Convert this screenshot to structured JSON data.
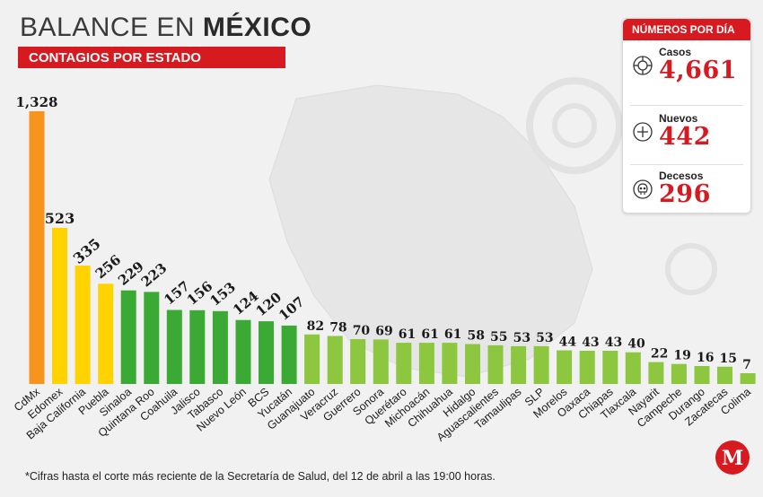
{
  "header": {
    "title_regular": "BALANCE EN ",
    "title_bold": "MÉXICO",
    "subtitle": "CONTAGIOS POR ESTADO"
  },
  "panel": {
    "title": "NÚMEROS POR DÍA",
    "stats": [
      {
        "label": "Casos",
        "value": "4,661",
        "icon": "virus-icon"
      },
      {
        "label": "Nuevos",
        "value": "442",
        "icon": "plus-circle-icon"
      },
      {
        "label": "Decesos",
        "value": "296",
        "icon": "skull-icon"
      }
    ]
  },
  "footnote": "*Cifras hasta el corte más reciente de la Secretaría de Salud, del 12 de abril a las 19:00 horas.",
  "logo": {
    "letter": "M"
  },
  "colors": {
    "accent_red": "#d71920",
    "orange": "#f7941d",
    "yellow": "#ffd200",
    "dark_green": "#3aaa35",
    "light_green": "#8dc63f"
  },
  "chart_data": {
    "type": "bar",
    "categories": [
      "CdMx",
      "Edomex",
      "Baja California",
      "Puebla",
      "Sinaloa",
      "Quintana Roo",
      "Coahuila",
      "Jalisco",
      "Tabasco",
      "Nuevo León",
      "BCS",
      "Yucatán",
      "Guanajuato",
      "Veracruz",
      "Guerrero",
      "Sonora",
      "Querétaro",
      "Michoacán",
      "Chihuahua",
      "Hidalgo",
      "Aguascalientes",
      "Tamaulipas",
      "SLP",
      "Morelos",
      "Oaxaca",
      "Chiapas",
      "Tlaxcala",
      "Nayarit",
      "Campeche",
      "Durango",
      "Zacatecas",
      "Colima"
    ],
    "values": [
      1328,
      523,
      335,
      256,
      229,
      223,
      157,
      156,
      153,
      124,
      120,
      107,
      82,
      78,
      70,
      69,
      61,
      61,
      61,
      58,
      55,
      53,
      53,
      44,
      43,
      43,
      40,
      22,
      19,
      16,
      15,
      7
    ],
    "value_labels": [
      "1,328",
      "523",
      "335",
      "256",
      "229",
      "223",
      "157",
      "156",
      "153",
      "124",
      "120",
      "107",
      "82",
      "78",
      "70",
      "69",
      "61",
      "61",
      "61",
      "58",
      "55",
      "53",
      "53",
      "44",
      "43",
      "43",
      "40",
      "22",
      "19",
      "16",
      "15",
      "7"
    ],
    "bar_colors": [
      "#f7941d",
      "#ffd200",
      "#ffd200",
      "#ffd200",
      "#3aaa35",
      "#3aaa35",
      "#3aaa35",
      "#3aaa35",
      "#3aaa35",
      "#3aaa35",
      "#3aaa35",
      "#3aaa35",
      "#8dc63f",
      "#8dc63f",
      "#8dc63f",
      "#8dc63f",
      "#8dc63f",
      "#8dc63f",
      "#8dc63f",
      "#8dc63f",
      "#8dc63f",
      "#8dc63f",
      "#8dc63f",
      "#8dc63f",
      "#8dc63f",
      "#8dc63f",
      "#8dc63f",
      "#8dc63f",
      "#8dc63f",
      "#8dc63f",
      "#8dc63f",
      "#8dc63f"
    ],
    "grid": false,
    "legend": "none"
  }
}
